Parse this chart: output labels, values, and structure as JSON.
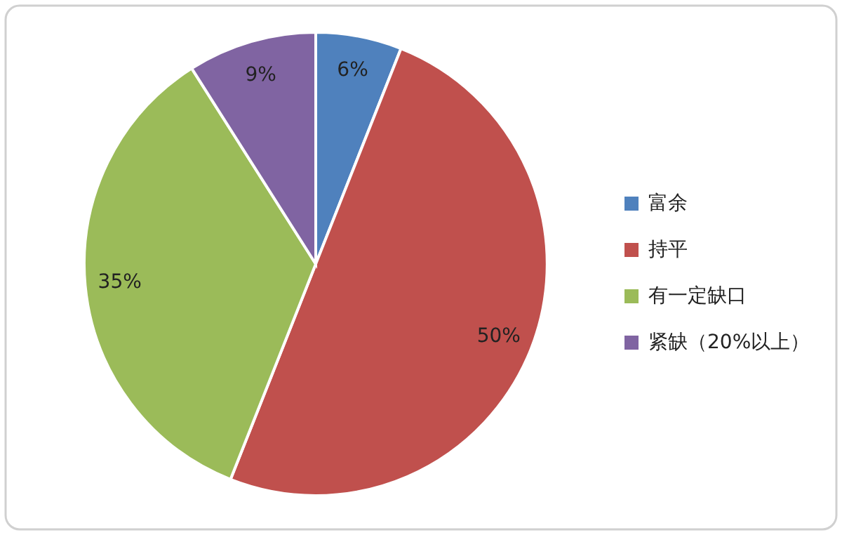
{
  "chart_data": {
    "type": "pie",
    "categories": [
      "富余",
      "持平",
      "有一定缺口",
      "紧缺（20%以上）"
    ],
    "values": [
      6,
      50,
      35,
      9
    ],
    "colors": [
      "#4f81bd",
      "#c0504d",
      "#9bbb59",
      "#8064a2"
    ],
    "value_labels": [
      "6%",
      "50%",
      "35%",
      "9%"
    ],
    "legend": "right"
  }
}
